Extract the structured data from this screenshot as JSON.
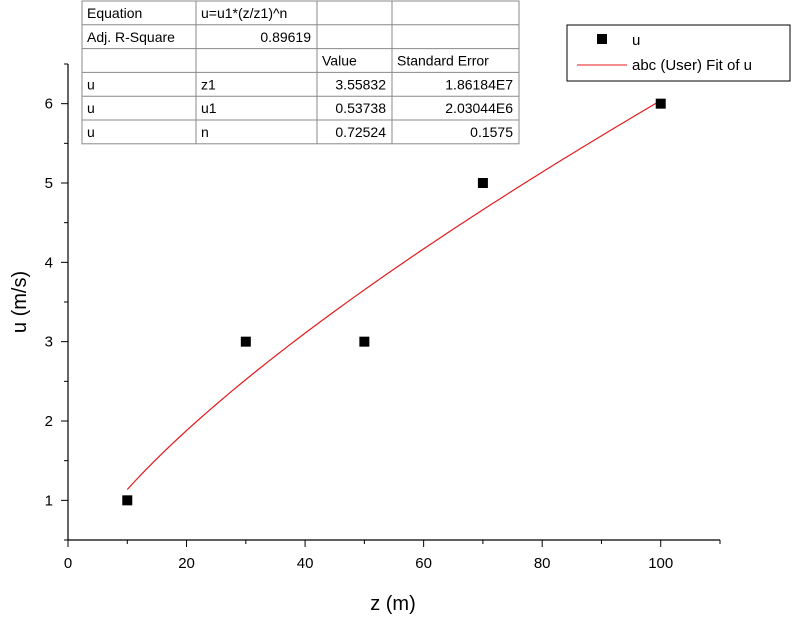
{
  "chart_data": {
    "type": "scatter",
    "xlabel": "z (m)",
    "ylabel": "u (m/s)",
    "xlim": [
      0,
      110
    ],
    "ylim": [
      0.5,
      6.5
    ],
    "xticks": [
      0,
      20,
      40,
      60,
      80,
      100
    ],
    "yticks": [
      1,
      2,
      3,
      4,
      5,
      6
    ],
    "grid": false,
    "legend_position": "top-right",
    "series": [
      {
        "name": "u",
        "kind": "scatter",
        "marker": "square",
        "color": "#000000",
        "x": [
          10,
          30,
          50,
          70,
          100
        ],
        "y": [
          1,
          3,
          3,
          5,
          6
        ]
      },
      {
        "name": "abc (User) Fit of u",
        "kind": "line",
        "color": "#e41a1c",
        "model": "u=u1*(z/z1)^n",
        "params": {
          "u1": 0.53738,
          "z1": 3.55832,
          "n": 0.72524
        },
        "x_range": [
          10,
          100
        ]
      }
    ],
    "stats_table": {
      "rows": [
        [
          "Equation",
          "u=u1*(z/z1)^n",
          "",
          ""
        ],
        [
          "Adj. R-Square",
          "0.89619",
          "",
          ""
        ],
        [
          "",
          "",
          "Value",
          "Standard Error"
        ],
        [
          "u",
          "z1",
          "3.55832",
          "1.86184E7"
        ],
        [
          "u",
          "u1",
          "0.53738",
          "2.03044E6"
        ],
        [
          "u",
          "n",
          "0.72524",
          "0.1575"
        ]
      ]
    }
  }
}
